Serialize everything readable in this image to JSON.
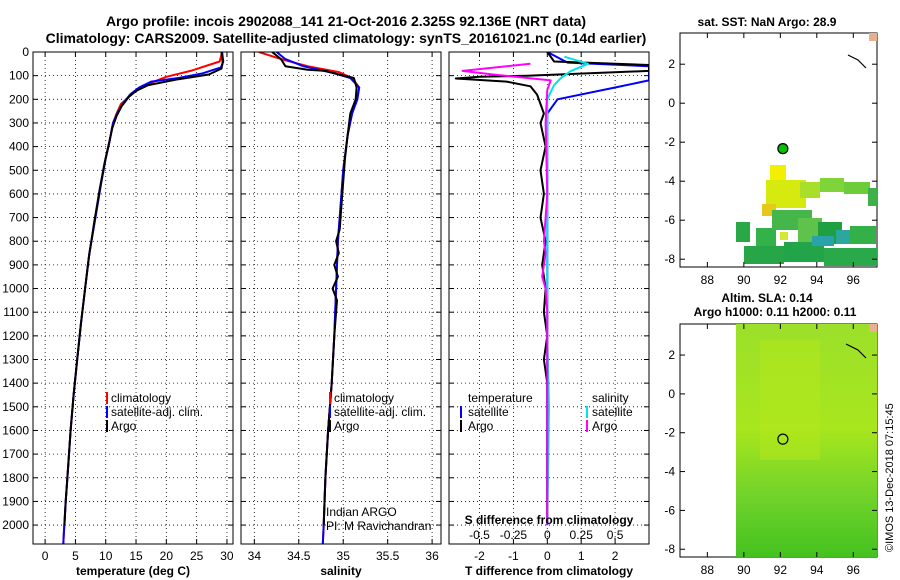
{
  "title": {
    "line1": "Argo profile: incois 2902088_141 21-Oct-2016 2.325S 92.136E (NRT data)",
    "line2": "Climatology: CARS2009. Satellite-adjusted climatology: synTS_20161021.nc (0.14d earlier)"
  },
  "colors": {
    "climatology": "#ff0000",
    "satellite": "#0000ff",
    "argo": "#000000",
    "sat_salinity": "#00e5e5",
    "argo_salinity": "#ff00ff"
  },
  "chart_data": [
    {
      "id": "temperature",
      "type": "line",
      "xlabel": "temperature (deg C)",
      "xlim": [
        -2,
        31
      ],
      "xticks": [
        0,
        5,
        10,
        15,
        20,
        25,
        30
      ],
      "ylim": [
        0,
        2080
      ],
      "yticks": [
        0,
        100,
        200,
        300,
        400,
        500,
        600,
        700,
        800,
        900,
        1000,
        1100,
        1200,
        1300,
        1400,
        1500,
        1600,
        1700,
        1800,
        1900,
        2000
      ],
      "legend": [
        "climatology",
        "satellite-adj. clim.",
        "Argo"
      ],
      "series": [
        {
          "name": "climatology",
          "color": "#ff0000",
          "points": [
            [
              29.2,
              0
            ],
            [
              28.8,
              40
            ],
            [
              27,
              55
            ],
            [
              24,
              80
            ],
            [
              20,
              105
            ],
            [
              17,
              135
            ],
            [
              15,
              165
            ],
            [
              14,
              185
            ],
            [
              12.5,
              220
            ],
            [
              11.8,
              260
            ],
            [
              11.2,
              300
            ],
            [
              10.6,
              380
            ],
            [
              10,
              450
            ],
            [
              9.2,
              560
            ],
            [
              8.3,
              700
            ],
            [
              7.3,
              850
            ],
            [
              6.6,
              1000
            ],
            [
              5.9,
              1150
            ],
            [
              5.3,
              1300
            ],
            [
              4.7,
              1450
            ],
            [
              4.2,
              1600
            ],
            [
              3.8,
              1750
            ],
            [
              3.4,
              1900
            ],
            [
              3.1,
              2030
            ],
            [
              3,
              2080
            ]
          ]
        },
        {
          "name": "satellite-adj. clim.",
          "color": "#0000ff",
          "points": [
            [
              29.2,
              0
            ],
            [
              29.4,
              40
            ],
            [
              29,
              65
            ],
            [
              26,
              90
            ],
            [
              22,
              110
            ],
            [
              17.5,
              125
            ],
            [
              15.5,
              150
            ],
            [
              14,
              180
            ],
            [
              12.8,
              220
            ],
            [
              11.9,
              260
            ],
            [
              11.2,
              300
            ],
            [
              10.6,
              380
            ],
            [
              10,
              450
            ],
            [
              9.2,
              560
            ],
            [
              8.3,
              700
            ],
            [
              7.3,
              850
            ],
            [
              6.6,
              1000
            ],
            [
              5.9,
              1150
            ],
            [
              5.3,
              1300
            ],
            [
              4.7,
              1450
            ],
            [
              4.2,
              1600
            ],
            [
              3.8,
              1750
            ],
            [
              3.4,
              1900
            ],
            [
              3.1,
              2030
            ],
            [
              3,
              2080
            ]
          ]
        },
        {
          "name": "Argo",
          "color": "#000000",
          "points": [
            [
              29.1,
              0
            ],
            [
              29.3,
              45
            ],
            [
              29.1,
              70
            ],
            [
              27,
              95
            ],
            [
              22,
              115
            ],
            [
              17,
              140
            ],
            [
              15,
              165
            ],
            [
              13.8,
              190
            ],
            [
              12.6,
              230
            ],
            [
              11.8,
              270
            ],
            [
              11.1,
              320
            ],
            [
              10.5,
              390
            ],
            [
              9.8,
              470
            ],
            [
              9,
              580
            ],
            [
              8.1,
              720
            ],
            [
              7.2,
              870
            ],
            [
              6.6,
              1000
            ],
            [
              5.9,
              1150
            ],
            [
              5.3,
              1300
            ],
            [
              4.7,
              1450
            ],
            [
              4.2,
              1600
            ],
            [
              3.8,
              1750
            ],
            [
              3.4,
              1900
            ],
            [
              3.2,
              2000
            ]
          ]
        }
      ]
    },
    {
      "id": "salinity",
      "type": "line",
      "xlabel": "salinity",
      "xlim": [
        33.85,
        36.1
      ],
      "xticks": [
        34,
        34.5,
        35,
        35.5,
        36
      ],
      "ylim": [
        0,
        2080
      ],
      "legend": [
        "climatology",
        "satellite-adj. clim.",
        "Argo"
      ],
      "annotations": [
        "Indian ARGO",
        "PI: M Ravichandran"
      ],
      "series": [
        {
          "name": "climatology",
          "color": "#ff0000",
          "points": [
            [
              34.05,
              0
            ],
            [
              34.3,
              30
            ],
            [
              34.6,
              60
            ],
            [
              34.95,
              85
            ],
            [
              35.1,
              110
            ],
            [
              35.18,
              150
            ],
            [
              35.15,
              200
            ],
            [
              35.1,
              260
            ],
            [
              35.05,
              350
            ],
            [
              35,
              500
            ],
            [
              34.97,
              650
            ],
            [
              34.94,
              800
            ],
            [
              34.92,
              1000
            ],
            [
              34.9,
              1200
            ],
            [
              34.87,
              1400
            ],
            [
              34.83,
              1600
            ],
            [
              34.8,
              1800
            ],
            [
              34.78,
              2000
            ],
            [
              34.77,
              2080
            ]
          ]
        },
        {
          "name": "satellite-adj. clim.",
          "color": "#0000ff",
          "points": [
            [
              34.25,
              0
            ],
            [
              34.35,
              30
            ],
            [
              34.55,
              60
            ],
            [
              34.9,
              90
            ],
            [
              35.08,
              110
            ],
            [
              35.18,
              150
            ],
            [
              35.16,
              200
            ],
            [
              35.1,
              260
            ],
            [
              35.05,
              350
            ],
            [
              35,
              500
            ],
            [
              34.97,
              650
            ],
            [
              34.94,
              800
            ],
            [
              34.92,
              1000
            ],
            [
              34.9,
              1200
            ],
            [
              34.87,
              1400
            ],
            [
              34.83,
              1600
            ],
            [
              34.8,
              1800
            ],
            [
              34.78,
              2000
            ],
            [
              34.77,
              2080
            ]
          ]
        },
        {
          "name": "Argo",
          "color": "#000000",
          "points": [
            [
              34.2,
              0
            ],
            [
              34.3,
              30
            ],
            [
              34.35,
              60
            ],
            [
              34.6,
              75
            ],
            [
              34.8,
              80
            ],
            [
              34.95,
              95
            ],
            [
              35.12,
              110
            ],
            [
              35.15,
              150
            ],
            [
              35.14,
              200
            ],
            [
              35.08,
              260
            ],
            [
              35.05,
              350
            ],
            [
              35.02,
              450
            ],
            [
              35,
              550
            ],
            [
              34.98,
              650
            ],
            [
              34.96,
              750
            ],
            [
              34.92,
              800
            ],
            [
              34.95,
              850
            ],
            [
              34.9,
              900
            ],
            [
              34.94,
              950
            ],
            [
              34.88,
              1000
            ],
            [
              34.93,
              1050
            ],
            [
              34.9,
              1200
            ],
            [
              34.87,
              1400
            ],
            [
              34.83,
              1600
            ],
            [
              34.8,
              1800
            ],
            [
              34.78,
              2000
            ]
          ]
        }
      ]
    },
    {
      "id": "difference",
      "type": "line",
      "xlabel": "T difference from climatology",
      "xlabel2": "S difference from climatology",
      "xlim": [
        -2.9,
        3
      ],
      "xticks": [
        -2,
        -1,
        0,
        1,
        2
      ],
      "xticks2": [
        -0.5,
        -0.25,
        0,
        0.25,
        0.5
      ],
      "xticks2_labels": [
        "-0.5",
        "-0.25",
        "0",
        "0.25",
        "0.5"
      ],
      "ylim": [
        0,
        2080
      ],
      "legend": {
        "temperature": [
          "satellite",
          "Argo"
        ],
        "salinity": [
          "satellite",
          "Argo"
        ]
      },
      "legend_headers": [
        "temperature",
        "salinity"
      ],
      "series": [
        {
          "name": "T satellite",
          "color": "#0000ff",
          "points": [
            [
              0,
              0
            ],
            [
              0.6,
              45
            ],
            [
              3,
              60
            ],
            [
              3,
              90
            ],
            [
              3,
              120
            ],
            [
              2,
              150
            ],
            [
              0.3,
              200
            ],
            [
              0,
              260
            ],
            [
              0,
              500
            ],
            [
              0,
              1000
            ],
            [
              0,
              1500
            ],
            [
              0,
              2000
            ]
          ]
        },
        {
          "name": "T Argo",
          "color": "#000000",
          "points": [
            [
              0,
              0
            ],
            [
              0.2,
              40
            ],
            [
              3,
              55
            ],
            [
              3,
              80
            ],
            [
              -0.6,
              100
            ],
            [
              -2,
              105
            ],
            [
              -2.7,
              112
            ],
            [
              -1.2,
              125
            ],
            [
              -0.5,
              145
            ],
            [
              -0.3,
              180
            ],
            [
              -0.1,
              260
            ],
            [
              -0.2,
              300
            ],
            [
              -0.05,
              400
            ],
            [
              -0.2,
              500
            ],
            [
              -0.1,
              600
            ],
            [
              -0.2,
              700
            ],
            [
              -0.05,
              800
            ],
            [
              -0.15,
              900
            ],
            [
              -0.05,
              1000
            ],
            [
              -0.1,
              1100
            ],
            [
              0,
              1200
            ],
            [
              -0.1,
              1300
            ],
            [
              0,
              1400
            ],
            [
              0,
              1500
            ],
            [
              0,
              2000
            ]
          ]
        },
        {
          "name": "S satellite",
          "color": "#00e5e5",
          "points": [
            [
              0.5,
              20
            ],
            [
              1.2,
              50
            ],
            [
              0.7,
              80
            ],
            [
              0.4,
              110
            ],
            [
              0.2,
              140
            ],
            [
              0,
              200
            ],
            [
              0,
              400
            ],
            [
              0,
              800
            ],
            [
              0,
              1200
            ],
            [
              0.05,
              1500
            ],
            [
              0,
              2000
            ]
          ]
        },
        {
          "name": "S Argo",
          "color": "#ff00ff",
          "points": [
            [
              -0.5,
              50
            ],
            [
              -2.5,
              80
            ],
            [
              -1.6,
              95
            ],
            [
              0.1,
              120
            ],
            [
              0,
              160
            ],
            [
              -0.05,
              300
            ],
            [
              0,
              600
            ],
            [
              -0.1,
              800
            ],
            [
              -0.05,
              850
            ],
            [
              -0.15,
              950
            ],
            [
              -0.05,
              1000
            ],
            [
              0,
              1100
            ],
            [
              0,
              2000
            ]
          ]
        }
      ]
    }
  ],
  "maps": {
    "sst": {
      "title": "sat. SST: NaN Argo: 28.9",
      "xlim": [
        86.5,
        97.3
      ],
      "ylim": [
        -8.4,
        3.6
      ],
      "xticks": [
        88,
        90,
        92,
        94,
        96
      ],
      "yticks": [
        2,
        0,
        -2,
        -4,
        -6,
        -8
      ],
      "argo_position": [
        92.14,
        -2.33
      ]
    },
    "sla": {
      "title1": "Altim. SLA: 0.14",
      "title2": "Argo h1000: 0.11 h2000: 0.11",
      "xlim": [
        86.5,
        97.3
      ],
      "ylim": [
        -8.4,
        3.6
      ],
      "xticks": [
        88,
        90,
        92,
        94,
        96
      ],
      "yticks": [
        2,
        0,
        -2,
        -4,
        -6,
        -8
      ],
      "argo_position": [
        92.14,
        -2.33
      ]
    }
  },
  "watermark": "©IMOS 13-Dec-2018 07:15:45"
}
